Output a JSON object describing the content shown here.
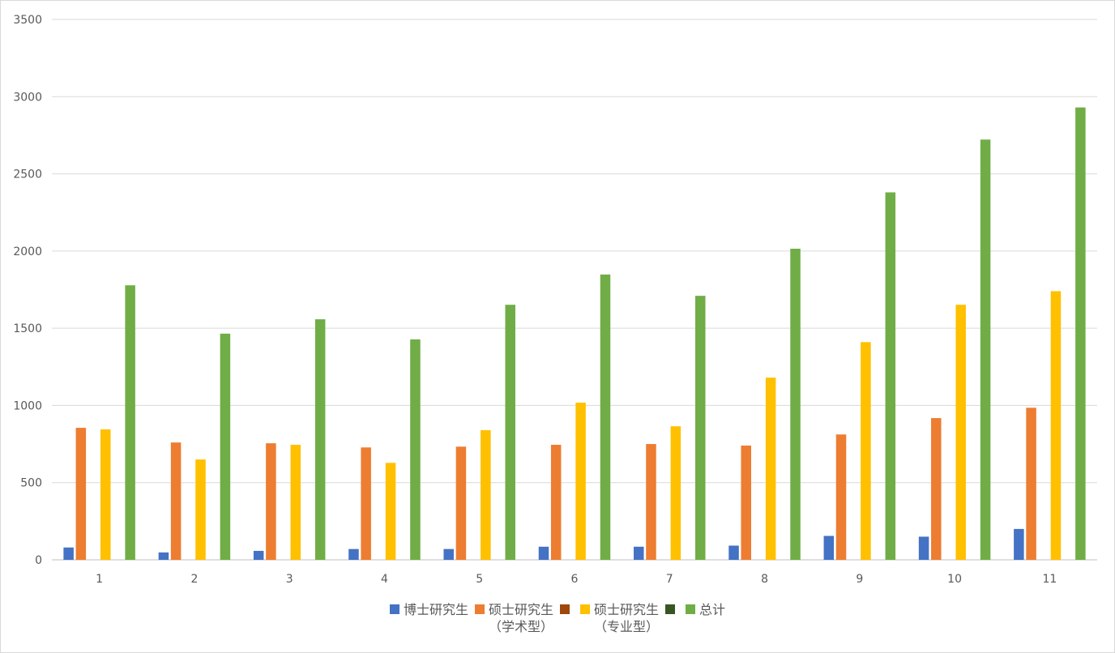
{
  "chart_data": {
    "type": "bar",
    "categories": [
      "1",
      "2",
      "3",
      "4",
      "5",
      "6",
      "7",
      "8",
      "9",
      "10",
      "11"
    ],
    "series": [
      {
        "name": "博士研究生",
        "color": "#4472C4",
        "values": [
          80,
          48,
          58,
          70,
          70,
          85,
          85,
          92,
          155,
          150,
          200
        ]
      },
      {
        "name": "硕士研究生\n（学术型）",
        "color": "#ED7D31",
        "values": [
          855,
          760,
          755,
          728,
          733,
          745,
          750,
          740,
          812,
          918,
          985
        ]
      },
      {
        "name": "",
        "color": "#9E480E",
        "values": [
          0,
          0,
          0,
          0,
          0,
          0,
          0,
          0,
          0,
          0,
          0
        ]
      },
      {
        "name": "硕士研究生\n（专业型）",
        "color": "#FFC000",
        "values": [
          845,
          650,
          745,
          628,
          840,
          1018,
          865,
          1180,
          1410,
          1652,
          1740
        ]
      },
      {
        "name": "",
        "color": "#375623",
        "values": [
          0,
          0,
          0,
          0,
          0,
          0,
          0,
          0,
          0,
          0,
          0
        ]
      },
      {
        "name": "总计",
        "color": "#70AD47",
        "values": [
          1778,
          1465,
          1558,
          1428,
          1652,
          1848,
          1710,
          2015,
          2380,
          2722,
          2930
        ]
      }
    ],
    "ylim": [
      0,
      3500
    ],
    "yticks": [
      "0",
      "500",
      "1000",
      "1500",
      "2000",
      "2500",
      "3000",
      "3500"
    ],
    "grid": true,
    "legend_position": "bottom"
  },
  "legend": [
    {
      "label": "博士研究生",
      "color": "#4472C4"
    },
    {
      "label": "硕士研究生\n（学术型）",
      "color": "#ED7D31"
    },
    {
      "label": "",
      "color": "#9E480E"
    },
    {
      "label": "硕士研究生\n（专业型）",
      "color": "#FFC000"
    },
    {
      "label": "",
      "color": "#375623"
    },
    {
      "label": "总计",
      "color": "#70AD47"
    }
  ]
}
